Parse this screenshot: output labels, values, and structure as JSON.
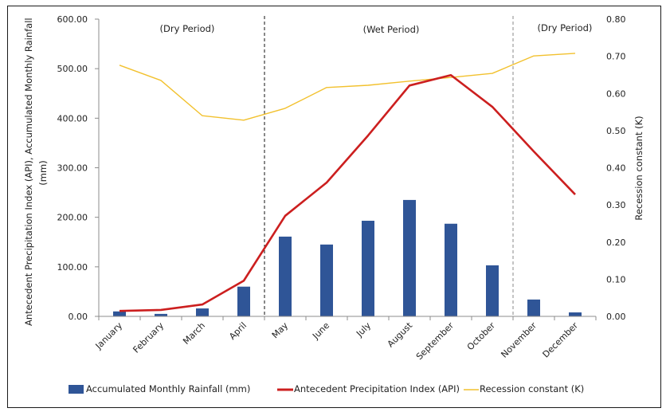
{
  "chart_data": {
    "type": "bar+line",
    "title": "",
    "categories": [
      "January",
      "February",
      "March",
      "April",
      "May",
      "June",
      "July",
      "August",
      "September",
      "October",
      "November",
      "December"
    ],
    "series": [
      {
        "name": "Accumulated Monthly Rainfall (mm)",
        "kind": "bar",
        "axis": "left",
        "color": "#2f5597",
        "values": [
          10,
          5,
          16,
          60,
          161,
          145,
          193,
          235,
          187,
          103,
          34,
          8
        ]
      },
      {
        "name": "Antecedent Precipitation Index (API)",
        "kind": "line",
        "axis": "left",
        "color": "#cc1f1f",
        "values": [
          11,
          13,
          24,
          72,
          203,
          270,
          365,
          466,
          487,
          423,
          333,
          246
        ]
      },
      {
        "name": "Recession constant (K)",
        "kind": "line",
        "axis": "right",
        "color": "#f2c12e",
        "values": [
          0.676,
          0.635,
          0.54,
          0.528,
          0.56,
          0.616,
          0.622,
          0.633,
          0.643,
          0.654,
          0.701,
          0.708
        ]
      }
    ],
    "ylabel": "Antecedent Precipitation Index (API), Accumulated Monthly Rainfall (mm)",
    "ylabel_lines": [
      "Antecedent Precipitation Index (API), Accumulated Monthly Rainfall",
      "(mm)"
    ],
    "y2label": "Recession constant (K)",
    "ylim": [
      0,
      600
    ],
    "y2lim": [
      0,
      0.8
    ],
    "yticks": [
      "0.00",
      "100.00",
      "200.00",
      "300.00",
      "400.00",
      "500.00",
      "600.00"
    ],
    "y2ticks": [
      "0.00",
      "0.10",
      "0.20",
      "0.30",
      "0.40",
      "0.50",
      "0.60",
      "0.70",
      "0.80"
    ],
    "grid": false,
    "legend_position": "bottom",
    "period_dividers": [
      {
        "between": [
          "April",
          "May"
        ],
        "style": "dashed-black"
      },
      {
        "between": [
          "October",
          "November"
        ],
        "style": "dashed-gray"
      }
    ],
    "annotations": [
      {
        "text": "(Dry Period)",
        "span": [
          "January",
          "April"
        ]
      },
      {
        "text": "(Wet Period)",
        "span": [
          "May",
          "October"
        ]
      },
      {
        "text": "(Dry Period)",
        "span": [
          "November",
          "December"
        ]
      }
    ]
  }
}
